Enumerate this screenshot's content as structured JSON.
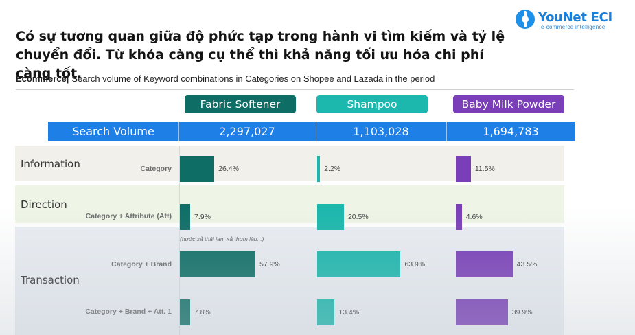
{
  "headline": "Có sự tương quan giữa độ phức tạp trong hành vi tìm kiếm và tỷ lệ chuyển đổi. Từ khóa càng cụ thể thì khả năng tối ưu hóa chi phí càng tốt.",
  "logo": {
    "name": "YouNet ECI",
    "tagline": "e-commerce intelligence",
    "color": "#1a7fd6"
  },
  "subtitle": {
    "bold": "Ecommerce",
    "separator": "|",
    "text": "Search volume of Keyword combinations in Categories on Shopee and Lazada in the period"
  },
  "search_volume": {
    "label": "Search Volume",
    "values": [
      "2,297,027",
      "1,103,028",
      "1,694,783"
    ]
  },
  "groups": [
    "Information",
    "Direction",
    "Transaction"
  ],
  "note": "(nước xả thái lan, xả thơm lâu...)",
  "chart_data": {
    "type": "bar",
    "categories": [
      "Category",
      "Category + Attribute (Att)",
      "Category + Brand",
      "Category + Brand + Att. 1"
    ],
    "series": [
      {
        "name": "Fabric Softener",
        "color": "#0e6e66",
        "values": [
          26.4,
          7.9,
          57.9,
          7.8
        ],
        "labels": [
          "26.4%",
          "7.9%",
          "57.9%",
          "7.8%"
        ]
      },
      {
        "name": "Shampoo",
        "color": "#1cb7ad",
        "values": [
          2.2,
          20.5,
          63.9,
          13.4
        ],
        "labels": [
          "2.2%",
          "20.5%",
          "63.9%",
          "13.4%"
        ]
      },
      {
        "name": "Baby Milk Powder",
        "color": "#7a3fb8",
        "values": [
          11.5,
          4.6,
          43.5,
          39.9
        ],
        "labels": [
          "11.5%",
          "4.6%",
          "43.5%",
          "39.9%"
        ]
      }
    ],
    "unit": "%"
  }
}
